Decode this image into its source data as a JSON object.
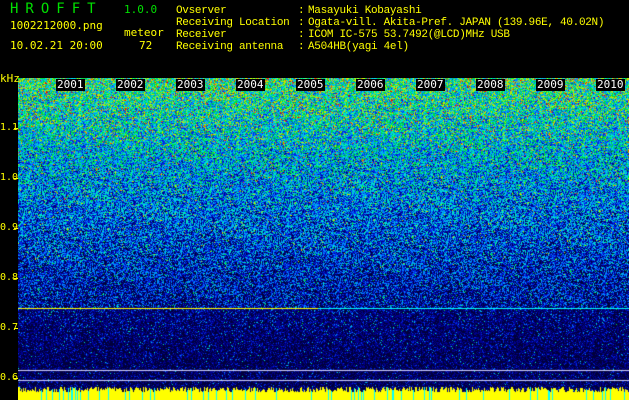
{
  "app": {
    "title": "HROFFT",
    "version": "1.0.0"
  },
  "file": {
    "name": "1002212000.png",
    "datetime": "10.02.21 20:00"
  },
  "meteor": {
    "label": "meteor",
    "count": "72"
  },
  "info": [
    {
      "label": "Ovserver",
      "value": "Masayuki Kobayashi"
    },
    {
      "label": "Receiving Location",
      "value": "Ogata-vill. Akita-Pref. JAPAN (139.96E, 40.02N)"
    },
    {
      "label": "Receiver",
      "value": "ICOM IC-575 53.7492(@LCD)MHz USB"
    },
    {
      "label": "Receiving antenna",
      "value": "A504HB(yagi 4el)"
    }
  ],
  "spectrogram": {
    "y_unit": "kHz",
    "y_ticks": [
      "1.1",
      "1.0",
      "0.9",
      "0.8",
      "0.7",
      "0.6"
    ],
    "time_labels": [
      "2001",
      "2002",
      "2003",
      "2004",
      "2005",
      "2006",
      "2007",
      "2008",
      "2009",
      "2010"
    ],
    "colors": {
      "text": "#ffff00",
      "title": "#00e000",
      "background": "#000000"
    }
  }
}
